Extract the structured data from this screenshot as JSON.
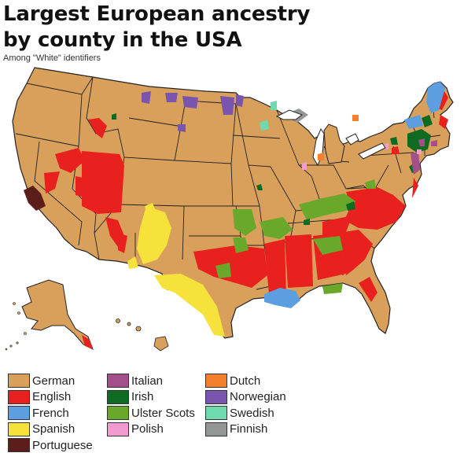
{
  "title_line1": "Largest European ancestry",
  "title_line2": "by county in the USA",
  "subtitle": "Among \"White\" identifiers",
  "colors": {
    "German": "#d9a05b",
    "English": "#e8201e",
    "French": "#5d9ee0",
    "Spanish": "#f6e23b",
    "Portuguese": "#5c1e1a",
    "Italian": "#a3508a",
    "Irish": "#106b22",
    "Ulster Scots": "#69a82b",
    "Polish": "#f29bd0",
    "Dutch": "#f47f2c",
    "Norwegian": "#7a55ad",
    "Swedish": "#6fd9b0",
    "Finnish": "#939896"
  },
  "legend": [
    {
      "label": "German",
      "color": "#d9a05b"
    },
    {
      "label": "English",
      "color": "#e8201e"
    },
    {
      "label": "French",
      "color": "#5d9ee0"
    },
    {
      "label": "Spanish",
      "color": "#f6e23b"
    },
    {
      "label": "Portuguese",
      "color": "#5c1e1a"
    },
    {
      "label": "Italian",
      "color": "#a3508a"
    },
    {
      "label": "Irish",
      "color": "#106b22"
    },
    {
      "label": "Ulster Scots",
      "color": "#69a82b"
    },
    {
      "label": "Polish",
      "color": "#f29bd0"
    },
    {
      "label": "Dutch",
      "color": "#f47f2c"
    },
    {
      "label": "Norwegian",
      "color": "#7a55ad"
    },
    {
      "label": "Swedish",
      "color": "#6fd9b0"
    },
    {
      "label": "Finnish",
      "color": "#939896"
    }
  ]
}
